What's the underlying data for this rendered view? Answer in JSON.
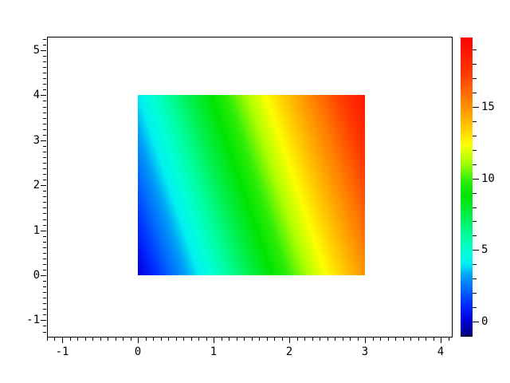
{
  "figure": {
    "kind": "plot-window",
    "background": "#ffffff",
    "title": ""
  },
  "axes": {
    "x": {
      "major_tick_labels": [
        "-1",
        "0",
        "1",
        "2",
        "3",
        "4"
      ],
      "major_tick_values": [
        -1,
        0,
        1,
        2,
        3,
        4
      ],
      "minor_step": 0.1,
      "min": -1.2,
      "max": 4.15
    },
    "y": {
      "major_tick_labels": [
        "-1",
        "0",
        "1",
        "2",
        "3",
        "4",
        "5"
      ],
      "major_tick_values": [
        -1,
        0,
        1,
        2,
        3,
        4,
        5
      ],
      "minor_step": 0.125,
      "min": -1.37,
      "max": 5.3
    }
  },
  "colorbar": {
    "side": "right",
    "tick_labels": [
      "0",
      "5",
      "10",
      "15"
    ],
    "tick_values": [
      0,
      5,
      10,
      15
    ],
    "minor_step": 1,
    "vmin": -1,
    "vmax": 20
  },
  "chart_data": {
    "type": "heatmap",
    "title": "",
    "xlabel": "",
    "ylabel": "",
    "x": [
      0,
      1,
      2,
      3
    ],
    "y": [
      0,
      1,
      2,
      3,
      4
    ],
    "z_rows_top_to_bottom": [
      [
        4,
        9,
        14,
        19
      ],
      [
        3,
        8,
        13,
        18
      ],
      [
        2,
        7,
        12,
        17
      ],
      [
        1,
        6,
        11,
        16
      ],
      [
        0,
        5,
        10,
        15
      ]
    ],
    "function": "z = 5*x + y (smooth shaded pseudocolor patch)",
    "extent_x": [
      0,
      3
    ],
    "extent_y": [
      0,
      4
    ],
    "xlim": [
      -1.2,
      4.15
    ],
    "ylim": [
      -1.37,
      5.3
    ],
    "grid": false,
    "legend_position": "colorbar-right",
    "colormap": "jet (navy-blue-cyan-green-yellow-orange-red)",
    "colorbar_range": [
      -1,
      20
    ],
    "colormap_stops": [
      [
        0.0,
        "#000080"
      ],
      [
        0.05,
        "#0000dc"
      ],
      [
        0.1,
        "#0028ff"
      ],
      [
        0.15,
        "#0064ff"
      ],
      [
        0.2,
        "#00a0f8"
      ],
      [
        0.24,
        "#00f0f0"
      ],
      [
        0.28,
        "#00ffd8"
      ],
      [
        0.34,
        "#00fc96"
      ],
      [
        0.4,
        "#00f04c"
      ],
      [
        0.47,
        "#00e400"
      ],
      [
        0.52,
        "#30ee08"
      ],
      [
        0.58,
        "#aaff00"
      ],
      [
        0.64,
        "#fdff00"
      ],
      [
        0.68,
        "#ffd900"
      ],
      [
        0.74,
        "#ffa600"
      ],
      [
        0.8,
        "#ff7700"
      ],
      [
        0.88,
        "#ff3800"
      ],
      [
        1.0,
        "#ff0000"
      ]
    ]
  }
}
